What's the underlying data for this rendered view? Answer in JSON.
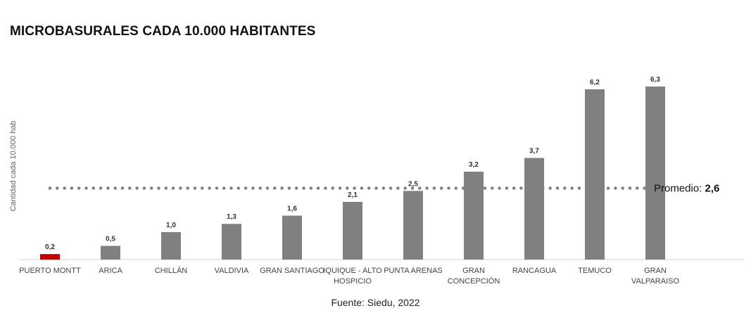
{
  "chart_data": {
    "type": "bar",
    "title": "MICROBASURALES CADA 10.000 HABITANTES",
    "ylabel": "Cantidad cada 10.000 hab",
    "xlabel": "",
    "categories": [
      [
        "PUERTO MONTT"
      ],
      [
        "ARICA"
      ],
      [
        "CHILLÁN"
      ],
      [
        "VALDIVIA"
      ],
      [
        "GRAN SANTIAGO"
      ],
      [
        "IQUIQUE - ALTO",
        "HOSPICIO"
      ],
      [
        "PUNTA ARENAS"
      ],
      [
        "GRAN",
        "CONCEPCIÓN"
      ],
      [
        "RANCAGUA"
      ],
      [
        "TEMUCO"
      ],
      [
        "GRAN",
        "VALPARAISO"
      ]
    ],
    "values": [
      0.2,
      0.5,
      1.0,
      1.3,
      1.6,
      2.1,
      2.5,
      3.2,
      3.7,
      6.2,
      6.3
    ],
    "value_labels": [
      "0,2",
      "0,5",
      "1,0",
      "1,3",
      "1,6",
      "2,1",
      "2,5",
      "3,2",
      "3,7",
      "6,2",
      "6,3"
    ],
    "ylim": [
      0,
      6.3
    ],
    "grid": false,
    "legend": "none",
    "reference_line": {
      "value": 2.6,
      "label_prefix": "Promedio: ",
      "label_value": "2,6",
      "style": "dotted"
    },
    "colors": {
      "bar": "#808080",
      "highlight_bar": "#c00000",
      "reference_line": "#808080",
      "axis": "#d0d0d0"
    },
    "highlight_index": 0
  },
  "source": "Fuente: Siedu, 2022"
}
